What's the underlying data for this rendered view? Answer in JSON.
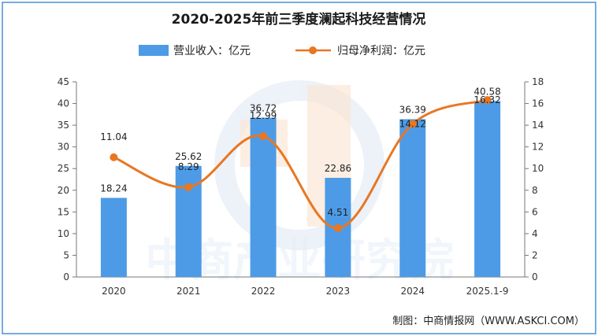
{
  "chart_data": {
    "type": "bar+line",
    "title": "2020-2025年前三季度澜起科技经营情况",
    "categories": [
      "2020",
      "2021",
      "2022",
      "2023",
      "2024",
      "2025.1-9"
    ],
    "series": [
      {
        "name": "营业收入：亿元",
        "type": "bar",
        "axis": "left",
        "color": "#4d9be6",
        "values": [
          18.24,
          25.62,
          36.72,
          22.86,
          36.39,
          40.58
        ],
        "labels": [
          "18.24",
          "25.62",
          "36.72",
          "22.86",
          "36.39",
          "40.58"
        ]
      },
      {
        "name": "归母净利润：亿元",
        "type": "line",
        "axis": "right",
        "color": "#e87722",
        "smooth": true,
        "values": [
          11.04,
          8.29,
          12.99,
          4.51,
          14.12,
          16.32
        ],
        "labels": [
          "11.04",
          "8.29",
          "12.99",
          "4.51",
          "14.12",
          "16.32"
        ]
      }
    ],
    "y_left": {
      "min": 0,
      "max": 45,
      "step": 5,
      "ticks": [
        "0",
        "5",
        "10",
        "15",
        "20",
        "25",
        "30",
        "35",
        "40",
        "45"
      ]
    },
    "y_right": {
      "min": 0,
      "max": 18,
      "step": 2,
      "ticks": [
        "0",
        "2",
        "4",
        "6",
        "8",
        "10",
        "12",
        "14",
        "16",
        "18"
      ]
    },
    "legend_position": "top-center",
    "grid": false
  },
  "watermark": {
    "text": "中商产业研究院"
  },
  "source": "制图：中商情报网（WWW.ASKCI.COM）",
  "colors": {
    "bar": "#4d9be6",
    "line": "#e87722",
    "border": "#4a90d9"
  }
}
